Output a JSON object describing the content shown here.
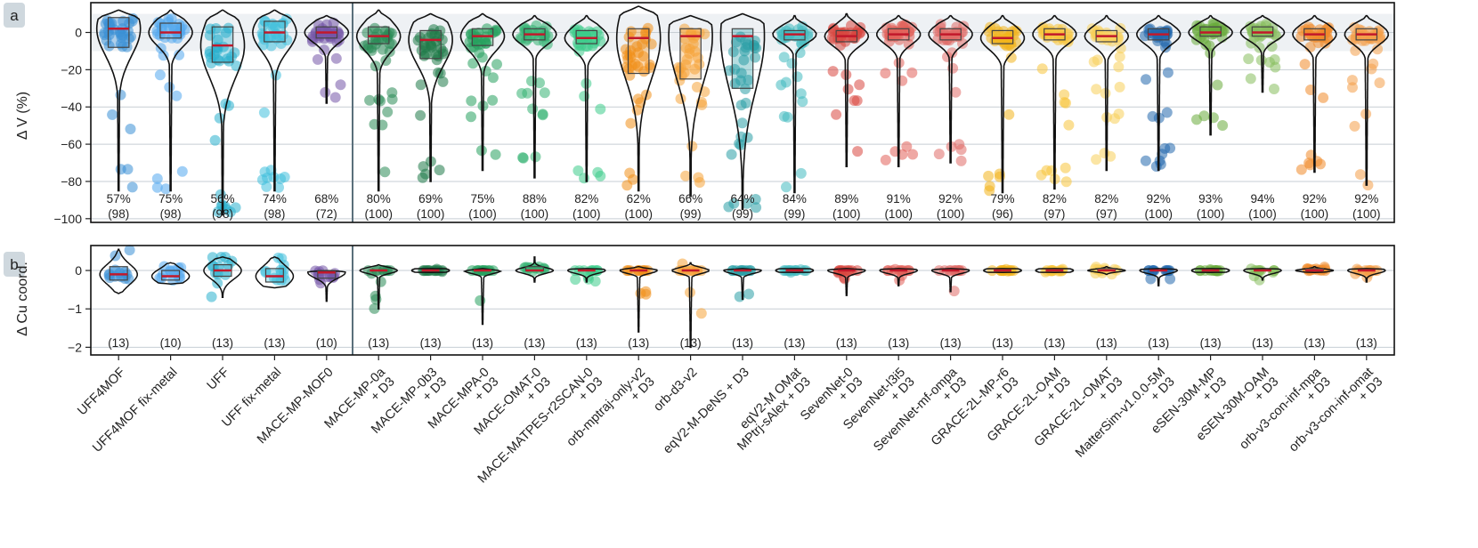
{
  "panels": [
    {
      "label": "a"
    },
    {
      "label": "b"
    }
  ],
  "chart_data": [
    {
      "type": "violin",
      "panel": "a",
      "ylabel": "Δ V (%)",
      "ylim": [
        -102,
        16
      ],
      "yticks": [
        0,
        -20,
        -40,
        -60,
        -80,
        -100
      ],
      "shaded_band": [
        -10,
        10
      ],
      "separator_after": "MACE-MP-MOF0",
      "models": [
        {
          "name": "UFF4MOF",
          "color": "#3a8fd6",
          "median": 2,
          "q1": -8,
          "q3": 8,
          "pct": "57%",
          "n": "(98)",
          "min": -85,
          "max": 12
        },
        {
          "name": "UFF4MOF fix-metal",
          "color": "#52a8ee",
          "median": 0,
          "q1": -3,
          "q3": 5,
          "pct": "75%",
          "n": "(98)",
          "min": -85,
          "max": 12
        },
        {
          "name": "UFF",
          "color": "#2ab0cd",
          "median": -7,
          "q1": -16,
          "q3": 3,
          "pct": "56%",
          "n": "(98)",
          "min": -98,
          "max": 12
        },
        {
          "name": "UFF fix-metal",
          "color": "#40c0dc",
          "median": 0,
          "q1": -5,
          "q3": 6,
          "pct": "74%",
          "n": "(98)",
          "min": -85,
          "max": 12
        },
        {
          "name": "MACE-MP-MOF0",
          "color": "#7556a8",
          "median": 0,
          "q1": -3,
          "q3": 3,
          "pct": "68%",
          "n": "(72)",
          "min": -38,
          "max": 9
        },
        {
          "name": "MACE-MP-0a\n+ D3",
          "color": "#2a8a55",
          "median": -2,
          "q1": -6,
          "q3": 3,
          "pct": "80%",
          "n": "(100)",
          "min": -85,
          "max": 12
        },
        {
          "name": "MACE-MP-0b3\n+ D3",
          "color": "#1f7a48",
          "median": -4,
          "q1": -14,
          "q3": 1,
          "pct": "69%",
          "n": "(100)",
          "min": -80,
          "max": 10
        },
        {
          "name": "MACE-MPA-0\n+ D3",
          "color": "#27a15e",
          "median": -2,
          "q1": -7,
          "q3": 2,
          "pct": "75%",
          "n": "(100)",
          "min": -74,
          "max": 10
        },
        {
          "name": "MACE-OMAT-0\n+ D3",
          "color": "#34b373",
          "median": -1,
          "q1": -4,
          "q3": 2,
          "pct": "88%",
          "n": "(100)",
          "min": -78,
          "max": 9
        },
        {
          "name": "MACE-MATPES-r2SCAN-0\n+ D3",
          "color": "#3dcc8a",
          "median": -3,
          "q1": -6,
          "q3": 1,
          "pct": "82%",
          "n": "(100)",
          "min": -80,
          "max": 9
        },
        {
          "name": "orb-mptraj-only-v2\n+ D3",
          "color": "#f0901a",
          "median": -3,
          "q1": -22,
          "q3": 2,
          "pct": "62%",
          "n": "(100)",
          "min": -85,
          "max": 14
        },
        {
          "name": "orb-d3-v2",
          "color": "#f5a43a",
          "median": -2,
          "q1": -25,
          "q3": 2,
          "pct": "66%",
          "n": "(99)",
          "min": -88,
          "max": 9
        },
        {
          "name": "eqV2-M-DeNS + D3",
          "color": "#2a9fa5",
          "median": -2,
          "q1": -30,
          "q3": 2,
          "pct": "64%",
          "n": "(99)",
          "min": -95,
          "max": 10
        },
        {
          "name": "eqV2-M OMat\nMPtrj-sAlex + D3",
          "color": "#42bac0",
          "median": -1,
          "q1": -4,
          "q3": 1,
          "pct": "84%",
          "n": "(99)",
          "min": -86,
          "max": 9
        },
        {
          "name": "SevenNet-0\n+ D3",
          "color": "#d8473f",
          "median": -2,
          "q1": -5,
          "q3": 1,
          "pct": "89%",
          "n": "(100)",
          "min": -72,
          "max": 10
        },
        {
          "name": "SevenNet-l3i5\n+ D3",
          "color": "#e2605a",
          "median": -1,
          "q1": -4,
          "q3": 2,
          "pct": "91%",
          "n": "(100)",
          "min": -72,
          "max": 9
        },
        {
          "name": "SevenNet-mf-ompa\n+ D3",
          "color": "#e06c68",
          "median": -1,
          "q1": -4,
          "q3": 2,
          "pct": "92%",
          "n": "(100)",
          "min": -70,
          "max": 9
        },
        {
          "name": "GRACE-2L-MP-r6\n+ D3",
          "color": "#f3b51d",
          "median": -3,
          "q1": -6,
          "q3": 1,
          "pct": "79%",
          "n": "(96)",
          "min": -86,
          "max": 9
        },
        {
          "name": "GRACE-2L-OAM\n+ D3",
          "color": "#f7c43c",
          "median": -1,
          "q1": -4,
          "q3": 2,
          "pct": "82%",
          "n": "(97)",
          "min": -84,
          "max": 9
        },
        {
          "name": "GRACE-2L-OMAT\n+ D3",
          "color": "#f8cf5a",
          "median": -2,
          "q1": -5,
          "q3": 1,
          "pct": "82%",
          "n": "(97)",
          "min": -74,
          "max": 9
        },
        {
          "name": "MatterSim-v1.0.0-5M\n+ D3",
          "color": "#2268ad",
          "median": -1,
          "q1": -4,
          "q3": 2,
          "pct": "92%",
          "n": "(100)",
          "min": -74,
          "max": 9
        },
        {
          "name": "eSEN-30M-MP\n+ D3",
          "color": "#6aac3c",
          "median": 0,
          "q1": -2,
          "q3": 3,
          "pct": "93%",
          "n": "(100)",
          "min": -55,
          "max": 9
        },
        {
          "name": "eSEN-30M-OAM\n+ D3",
          "color": "#86bd5c",
          "median": 0,
          "q1": -2,
          "q3": 3,
          "pct": "94%",
          "n": "(100)",
          "min": -32,
          "max": 9
        },
        {
          "name": "orb-v3-con-inf-mpa\n+ D3",
          "color": "#f08a2a",
          "median": -1,
          "q1": -4,
          "q3": 2,
          "pct": "92%",
          "n": "(100)",
          "min": -75,
          "max": 9
        },
        {
          "name": "orb-v3-con-inf-omat\n+ D3",
          "color": "#f49e48",
          "median": -1,
          "q1": -4,
          "q3": 2,
          "pct": "92%",
          "n": "(100)",
          "min": -82,
          "max": 9
        }
      ]
    },
    {
      "type": "violin",
      "panel": "b",
      "ylabel": "Δ Cu coord.",
      "ylim": [
        -2.2,
        0.65
      ],
      "yticks": [
        0,
        -1,
        -2
      ],
      "series": [
        {
          "model": "UFF4MOF",
          "median": -0.1,
          "q1": -0.25,
          "q3": 0.1,
          "min": -0.6,
          "max": 0.55,
          "n": "(13)"
        },
        {
          "model": "UFF4MOF fix-metal",
          "median": -0.15,
          "q1": -0.25,
          "q3": 0.0,
          "min": -0.35,
          "max": 0.2,
          "n": "(10)"
        },
        {
          "model": "UFF",
          "median": 0.0,
          "q1": -0.15,
          "q3": 0.15,
          "min": -0.7,
          "max": 0.35,
          "n": "(13)"
        },
        {
          "model": "UFF fix-metal",
          "median": -0.15,
          "q1": -0.3,
          "q3": 0.05,
          "min": -0.45,
          "max": 0.35,
          "n": "(13)"
        },
        {
          "model": "MACE-MP-MOF0",
          "median": -0.05,
          "q1": -0.2,
          "q3": 0.0,
          "min": -0.8,
          "max": 0.0,
          "n": "(10)"
        },
        {
          "model": "MACE-MP-0a + D3",
          "median": 0.0,
          "q1": 0.0,
          "q3": 0.0,
          "min": -1.0,
          "max": 0.15,
          "n": "(13)"
        },
        {
          "model": "MACE-MP-0b3 + D3",
          "median": 0.0,
          "q1": 0.0,
          "q3": 0.0,
          "min": -0.05,
          "max": 0.05,
          "n": "(13)"
        },
        {
          "model": "MACE-MPA-0 + D3",
          "median": 0.0,
          "q1": 0.0,
          "q3": 0.0,
          "min": -1.4,
          "max": 0.05,
          "n": "(13)"
        },
        {
          "model": "MACE-OMAT-0 + D3",
          "median": 0.0,
          "q1": 0.0,
          "q3": 0.1,
          "min": -0.3,
          "max": 0.35,
          "n": "(13)"
        },
        {
          "model": "MACE-MATPES-r2SCAN-0 + D3",
          "median": 0.0,
          "q1": 0.0,
          "q3": 0.0,
          "min": -0.3,
          "max": 0.05,
          "n": "(13)"
        },
        {
          "model": "orb-mptraj-only-v2 + D3",
          "median": 0.0,
          "q1": 0.0,
          "q3": 0.0,
          "min": -1.6,
          "max": 0.1,
          "n": "(13)"
        },
        {
          "model": "orb-d3-v2",
          "median": 0.0,
          "q1": 0.0,
          "q3": 0.0,
          "min": -2.0,
          "max": 0.2,
          "n": "(13)"
        },
        {
          "model": "eqV2-M-DeNS + D3",
          "median": 0.0,
          "q1": 0.0,
          "q3": 0.0,
          "min": -0.75,
          "max": 0.05,
          "n": "(13)"
        },
        {
          "model": "eqV2-M OMat MPtrj-sAlex + D3",
          "median": 0.0,
          "q1": 0.0,
          "q3": 0.0,
          "min": -0.05,
          "max": 0.05,
          "n": "(13)"
        },
        {
          "model": "SevenNet-0 + D3",
          "median": 0.0,
          "q1": 0.0,
          "q3": 0.0,
          "min": -0.65,
          "max": 0.05,
          "n": "(13)"
        },
        {
          "model": "SevenNet-l3i5 + D3",
          "median": 0.0,
          "q1": 0.0,
          "q3": 0.0,
          "min": -0.4,
          "max": 0.05,
          "n": "(13)"
        },
        {
          "model": "SevenNet-mf-ompa + D3",
          "median": 0.0,
          "q1": 0.0,
          "q3": 0.0,
          "min": -0.55,
          "max": 0.05,
          "n": "(13)"
        },
        {
          "model": "GRACE-2L-MP-r6 + D3",
          "median": 0.0,
          "q1": 0.0,
          "q3": 0.0,
          "min": -0.05,
          "max": 0.05,
          "n": "(13)"
        },
        {
          "model": "GRACE-2L-OAM + D3",
          "median": 0.0,
          "q1": 0.0,
          "q3": 0.0,
          "min": -0.05,
          "max": 0.05,
          "n": "(13)"
        },
        {
          "model": "GRACE-2L-OMAT + D3",
          "median": 0.0,
          "q1": 0.0,
          "q3": 0.05,
          "min": -0.1,
          "max": 0.1,
          "n": "(13)"
        },
        {
          "model": "MatterSim-v1.0.0-5M + D3",
          "median": 0.0,
          "q1": 0.0,
          "q3": 0.0,
          "min": -0.4,
          "max": 0.05,
          "n": "(13)"
        },
        {
          "model": "eSEN-30M-MP + D3",
          "median": 0.0,
          "q1": 0.0,
          "q3": 0.0,
          "min": -0.05,
          "max": 0.05,
          "n": "(13)"
        },
        {
          "model": "eSEN-30M-OAM + D3",
          "median": 0.0,
          "q1": 0.0,
          "q3": 0.0,
          "min": -0.25,
          "max": 0.05,
          "n": "(13)"
        },
        {
          "model": "orb-v3-con-inf-mpa + D3",
          "median": 0.0,
          "q1": 0.0,
          "q3": 0.05,
          "min": -0.05,
          "max": 0.1,
          "n": "(13)"
        },
        {
          "model": "orb-v3-con-inf-omat + D3",
          "median": 0.0,
          "q1": 0.0,
          "q3": 0.0,
          "min": -0.3,
          "max": 0.05,
          "n": "(13)"
        }
      ]
    }
  ]
}
